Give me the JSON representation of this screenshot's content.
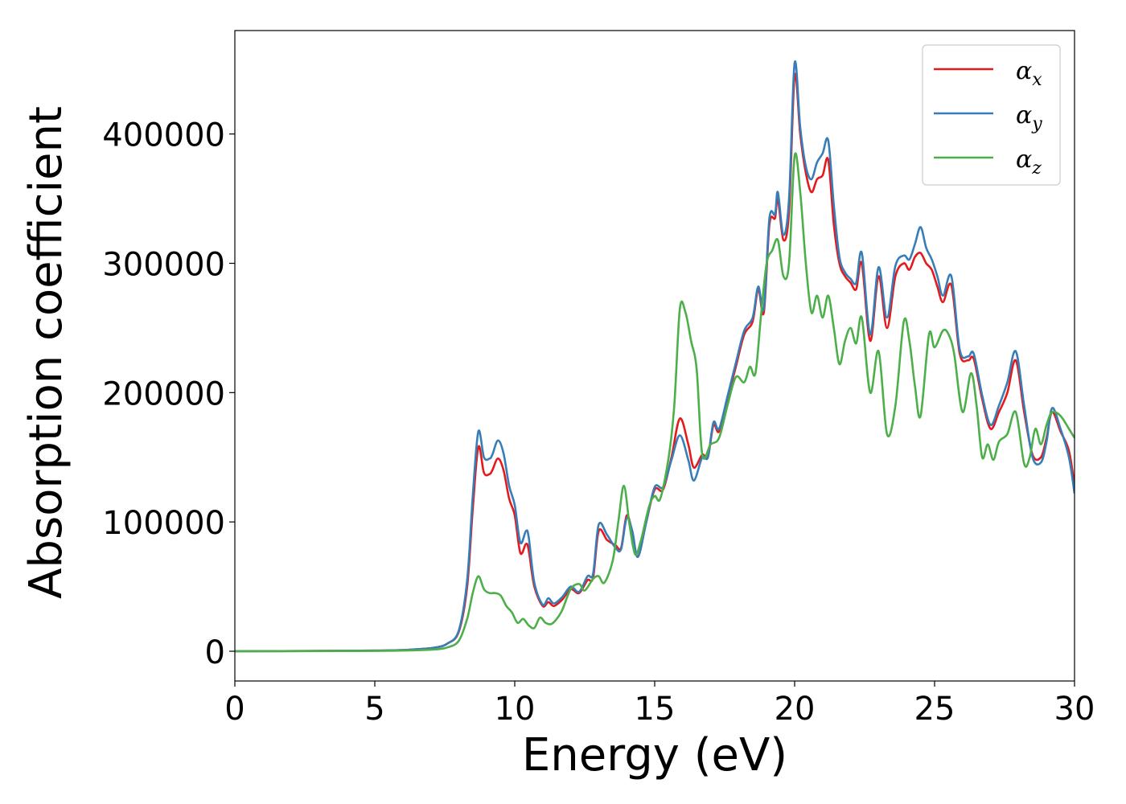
{
  "chart_data": {
    "type": "line",
    "xlabel": "Energy (eV)",
    "ylabel": "Absorption coefficient",
    "xlim": [
      0,
      30
    ],
    "ylim": [
      -23000,
      480000
    ],
    "xticks": [
      0,
      5,
      10,
      15,
      20,
      25,
      30
    ],
    "xtick_labels": [
      "0",
      "5",
      "10",
      "15",
      "20",
      "25",
      "30"
    ],
    "yticks": [
      0,
      100000,
      200000,
      300000,
      400000
    ],
    "ytick_labels": [
      "0",
      "100000",
      "200000",
      "300000",
      "400000"
    ],
    "grid": false,
    "legend_position": "top-right",
    "series": [
      {
        "name": "α",
        "subscript": "x",
        "color": "#e41a1c",
        "points": [
          [
            0,
            0
          ],
          [
            5,
            500
          ],
          [
            6.5,
            1500
          ],
          [
            7.2,
            3000
          ],
          [
            7.6,
            6000
          ],
          [
            8.0,
            15000
          ],
          [
            8.3,
            50000
          ],
          [
            8.5,
            110000
          ],
          [
            8.7,
            158000
          ],
          [
            8.9,
            138000
          ],
          [
            9.1,
            137000
          ],
          [
            9.2,
            140000
          ],
          [
            9.4,
            149000
          ],
          [
            9.6,
            140000
          ],
          [
            9.8,
            118000
          ],
          [
            10.0,
            105000
          ],
          [
            10.2,
            76000
          ],
          [
            10.4,
            83000
          ],
          [
            10.5,
            78000
          ],
          [
            10.7,
            50000
          ],
          [
            11.0,
            35000
          ],
          [
            11.2,
            38000
          ],
          [
            11.4,
            35000
          ],
          [
            11.7,
            40000
          ],
          [
            12.0,
            48000
          ],
          [
            12.3,
            45000
          ],
          [
            12.6,
            55000
          ],
          [
            12.8,
            57000
          ],
          [
            13.0,
            93000
          ],
          [
            13.3,
            86000
          ],
          [
            13.6,
            82000
          ],
          [
            13.8,
            80000
          ],
          [
            14.0,
            105000
          ],
          [
            14.2,
            92000
          ],
          [
            14.4,
            73000
          ],
          [
            14.7,
            100000
          ],
          [
            15.0,
            125000
          ],
          [
            15.3,
            125000
          ],
          [
            15.6,
            150000
          ],
          [
            15.9,
            180000
          ],
          [
            16.2,
            160000
          ],
          [
            16.4,
            142000
          ],
          [
            16.7,
            152000
          ],
          [
            16.9,
            150000
          ],
          [
            17.1,
            175000
          ],
          [
            17.3,
            170000
          ],
          [
            17.6,
            195000
          ],
          [
            17.9,
            220000
          ],
          [
            18.2,
            245000
          ],
          [
            18.5,
            255000
          ],
          [
            18.7,
            280000
          ],
          [
            18.9,
            262000
          ],
          [
            19.1,
            330000
          ],
          [
            19.3,
            335000
          ],
          [
            19.4,
            350000
          ],
          [
            19.6,
            318000
          ],
          [
            19.8,
            340000
          ],
          [
            20.0,
            445000
          ],
          [
            20.2,
            400000
          ],
          [
            20.4,
            370000
          ],
          [
            20.6,
            355000
          ],
          [
            20.8,
            365000
          ],
          [
            21.0,
            368000
          ],
          [
            21.2,
            380000
          ],
          [
            21.4,
            330000
          ],
          [
            21.6,
            300000
          ],
          [
            21.8,
            290000
          ],
          [
            22.0,
            285000
          ],
          [
            22.2,
            280000
          ],
          [
            22.4,
            300000
          ],
          [
            22.7,
            240000
          ],
          [
            23.0,
            290000
          ],
          [
            23.3,
            250000
          ],
          [
            23.6,
            290000
          ],
          [
            23.9,
            300000
          ],
          [
            24.1,
            295000
          ],
          [
            24.3,
            305000
          ],
          [
            24.5,
            308000
          ],
          [
            24.7,
            300000
          ],
          [
            24.9,
            295000
          ],
          [
            25.1,
            282000
          ],
          [
            25.3,
            270000
          ],
          [
            25.6,
            283000
          ],
          [
            25.9,
            230000
          ],
          [
            26.2,
            225000
          ],
          [
            26.4,
            226000
          ],
          [
            26.7,
            195000
          ],
          [
            27.0,
            172000
          ],
          [
            27.3,
            185000
          ],
          [
            27.6,
            200000
          ],
          [
            27.9,
            225000
          ],
          [
            28.2,
            185000
          ],
          [
            28.5,
            152000
          ],
          [
            28.8,
            150000
          ],
          [
            29.0,
            165000
          ],
          [
            29.2,
            185000
          ],
          [
            29.5,
            170000
          ],
          [
            29.8,
            155000
          ],
          [
            30.0,
            128000
          ]
        ]
      },
      {
        "name": "α",
        "subscript": "y",
        "color": "#377eb8",
        "points": [
          [
            0,
            0
          ],
          [
            5,
            500
          ],
          [
            6.5,
            1500
          ],
          [
            7.2,
            3000
          ],
          [
            7.6,
            6000
          ],
          [
            8.0,
            16000
          ],
          [
            8.3,
            55000
          ],
          [
            8.5,
            120000
          ],
          [
            8.7,
            170000
          ],
          [
            8.9,
            150000
          ],
          [
            9.1,
            149000
          ],
          [
            9.2,
            152000
          ],
          [
            9.4,
            163000
          ],
          [
            9.6,
            153000
          ],
          [
            9.8,
            128000
          ],
          [
            10.0,
            113000
          ],
          [
            10.2,
            84000
          ],
          [
            10.4,
            93000
          ],
          [
            10.5,
            88000
          ],
          [
            10.7,
            53000
          ],
          [
            11.0,
            36000
          ],
          [
            11.2,
            41000
          ],
          [
            11.4,
            37000
          ],
          [
            11.7,
            42000
          ],
          [
            12.0,
            50000
          ],
          [
            12.3,
            46000
          ],
          [
            12.6,
            58000
          ],
          [
            12.8,
            60000
          ],
          [
            13.0,
            98000
          ],
          [
            13.3,
            90000
          ],
          [
            13.6,
            80000
          ],
          [
            13.8,
            79000
          ],
          [
            14.0,
            103000
          ],
          [
            14.2,
            93000
          ],
          [
            14.4,
            73000
          ],
          [
            14.7,
            100000
          ],
          [
            15.0,
            127000
          ],
          [
            15.3,
            127000
          ],
          [
            15.6,
            148000
          ],
          [
            15.9,
            167000
          ],
          [
            16.2,
            148000
          ],
          [
            16.4,
            132000
          ],
          [
            16.7,
            150000
          ],
          [
            16.9,
            150000
          ],
          [
            17.1,
            177000
          ],
          [
            17.3,
            172000
          ],
          [
            17.6,
            197000
          ],
          [
            17.9,
            223000
          ],
          [
            18.2,
            248000
          ],
          [
            18.5,
            258000
          ],
          [
            18.7,
            282000
          ],
          [
            18.9,
            265000
          ],
          [
            19.1,
            335000
          ],
          [
            19.3,
            338000
          ],
          [
            19.4,
            355000
          ],
          [
            19.6,
            322000
          ],
          [
            19.8,
            350000
          ],
          [
            20.0,
            455000
          ],
          [
            20.2,
            405000
          ],
          [
            20.4,
            375000
          ],
          [
            20.6,
            365000
          ],
          [
            20.8,
            378000
          ],
          [
            21.0,
            385000
          ],
          [
            21.2,
            395000
          ],
          [
            21.4,
            345000
          ],
          [
            21.6,
            305000
          ],
          [
            21.8,
            293000
          ],
          [
            22.0,
            288000
          ],
          [
            22.2,
            285000
          ],
          [
            22.4,
            308000
          ],
          [
            22.7,
            245000
          ],
          [
            23.0,
            297000
          ],
          [
            23.3,
            258000
          ],
          [
            23.6,
            298000
          ],
          [
            23.9,
            306000
          ],
          [
            24.1,
            303000
          ],
          [
            24.3,
            315000
          ],
          [
            24.5,
            328000
          ],
          [
            24.7,
            312000
          ],
          [
            24.9,
            303000
          ],
          [
            25.1,
            290000
          ],
          [
            25.3,
            275000
          ],
          [
            25.6,
            290000
          ],
          [
            25.9,
            233000
          ],
          [
            26.2,
            228000
          ],
          [
            26.4,
            230000
          ],
          [
            26.7,
            198000
          ],
          [
            27.0,
            175000
          ],
          [
            27.3,
            190000
          ],
          [
            27.6,
            208000
          ],
          [
            27.9,
            232000
          ],
          [
            28.2,
            190000
          ],
          [
            28.5,
            150000
          ],
          [
            28.8,
            146000
          ],
          [
            29.0,
            162000
          ],
          [
            29.2,
            188000
          ],
          [
            29.5,
            172000
          ],
          [
            29.8,
            150000
          ],
          [
            30.0,
            122000
          ]
        ]
      },
      {
        "name": "α",
        "subscript": "z",
        "color": "#4daf4a",
        "points": [
          [
            0,
            0
          ],
          [
            5,
            300
          ],
          [
            6.5,
            800
          ],
          [
            7.2,
            1500
          ],
          [
            7.6,
            3000
          ],
          [
            8.0,
            8000
          ],
          [
            8.3,
            25000
          ],
          [
            8.5,
            45000
          ],
          [
            8.7,
            58000
          ],
          [
            8.9,
            48000
          ],
          [
            9.1,
            45000
          ],
          [
            9.3,
            45000
          ],
          [
            9.5,
            43000
          ],
          [
            9.7,
            35000
          ],
          [
            9.9,
            30000
          ],
          [
            10.1,
            22000
          ],
          [
            10.3,
            25000
          ],
          [
            10.5,
            20000
          ],
          [
            10.7,
            18000
          ],
          [
            10.9,
            26000
          ],
          [
            11.1,
            22000
          ],
          [
            11.3,
            21000
          ],
          [
            11.5,
            25000
          ],
          [
            11.7,
            32000
          ],
          [
            12.0,
            48000
          ],
          [
            12.3,
            52000
          ],
          [
            12.5,
            47000
          ],
          [
            12.8,
            56000
          ],
          [
            13.0,
            58000
          ],
          [
            13.2,
            53000
          ],
          [
            13.5,
            70000
          ],
          [
            13.7,
            100000
          ],
          [
            13.9,
            128000
          ],
          [
            14.1,
            98000
          ],
          [
            14.3,
            75000
          ],
          [
            14.5,
            85000
          ],
          [
            14.8,
            112000
          ],
          [
            15.0,
            120000
          ],
          [
            15.2,
            118000
          ],
          [
            15.5,
            150000
          ],
          [
            15.7,
            190000
          ],
          [
            15.9,
            265000
          ],
          [
            16.1,
            262000
          ],
          [
            16.3,
            240000
          ],
          [
            16.5,
            218000
          ],
          [
            16.7,
            152000
          ],
          [
            17.0,
            160000
          ],
          [
            17.3,
            165000
          ],
          [
            17.6,
            190000
          ],
          [
            17.9,
            212000
          ],
          [
            18.2,
            208000
          ],
          [
            18.4,
            220000
          ],
          [
            18.6,
            215000
          ],
          [
            18.8,
            260000
          ],
          [
            19.0,
            300000
          ],
          [
            19.2,
            310000
          ],
          [
            19.4,
            318000
          ],
          [
            19.6,
            290000
          ],
          [
            19.8,
            300000
          ],
          [
            20.0,
            383000
          ],
          [
            20.2,
            355000
          ],
          [
            20.4,
            300000
          ],
          [
            20.6,
            262000
          ],
          [
            20.8,
            275000
          ],
          [
            21.0,
            258000
          ],
          [
            21.2,
            275000
          ],
          [
            21.4,
            250000
          ],
          [
            21.6,
            222000
          ],
          [
            21.8,
            240000
          ],
          [
            22.0,
            250000
          ],
          [
            22.2,
            238000
          ],
          [
            22.4,
            258000
          ],
          [
            22.7,
            200000
          ],
          [
            23.0,
            232000
          ],
          [
            23.3,
            168000
          ],
          [
            23.6,
            190000
          ],
          [
            23.9,
            255000
          ],
          [
            24.1,
            240000
          ],
          [
            24.3,
            205000
          ],
          [
            24.5,
            182000
          ],
          [
            24.8,
            245000
          ],
          [
            25.0,
            235000
          ],
          [
            25.3,
            248000
          ],
          [
            25.5,
            245000
          ],
          [
            25.7,
            230000
          ],
          [
            26.0,
            185000
          ],
          [
            26.3,
            215000
          ],
          [
            26.5,
            190000
          ],
          [
            26.7,
            150000
          ],
          [
            26.9,
            160000
          ],
          [
            27.1,
            148000
          ],
          [
            27.3,
            162000
          ],
          [
            27.6,
            168000
          ],
          [
            27.9,
            185000
          ],
          [
            28.2,
            145000
          ],
          [
            28.4,
            150000
          ],
          [
            28.6,
            172000
          ],
          [
            28.8,
            160000
          ],
          [
            29.0,
            175000
          ],
          [
            29.2,
            185000
          ],
          [
            29.5,
            182000
          ],
          [
            29.8,
            172000
          ],
          [
            30.0,
            165000
          ]
        ]
      }
    ]
  }
}
